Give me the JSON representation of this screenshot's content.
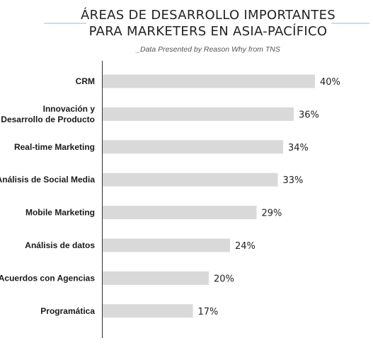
{
  "chart_data": {
    "type": "bar",
    "orientation": "horizontal",
    "title_lines": [
      "ÁREAS DE DESARROLLO IMPORTANTES",
      "PARA MARKETERS EN ASIA-PACÍFICO"
    ],
    "subtitle": "_Data Presented by Reason Why from TNS",
    "categories": [
      [
        "CRM"
      ],
      [
        "Innovación y",
        "Desarrollo de Producto"
      ],
      [
        "Real-time Marketing"
      ],
      [
        "Análisis de Social Media"
      ],
      [
        "Mobile Marketing"
      ],
      [
        "Análisis de datos"
      ],
      [
        "Acuerdos con Agencias"
      ],
      [
        "Programática"
      ]
    ],
    "values": [
      40,
      36,
      34,
      33,
      29,
      24,
      20,
      17
    ],
    "value_labels": [
      "40%",
      "36%",
      "34%",
      "33%",
      "29%",
      "24%",
      "20%",
      "17%"
    ],
    "highlight_index": 0,
    "colors": {
      "bar": "#d9d9d9",
      "highlight_text": "#e8389e",
      "title_rule": "#7fc8de",
      "axis": "#333333"
    }
  }
}
